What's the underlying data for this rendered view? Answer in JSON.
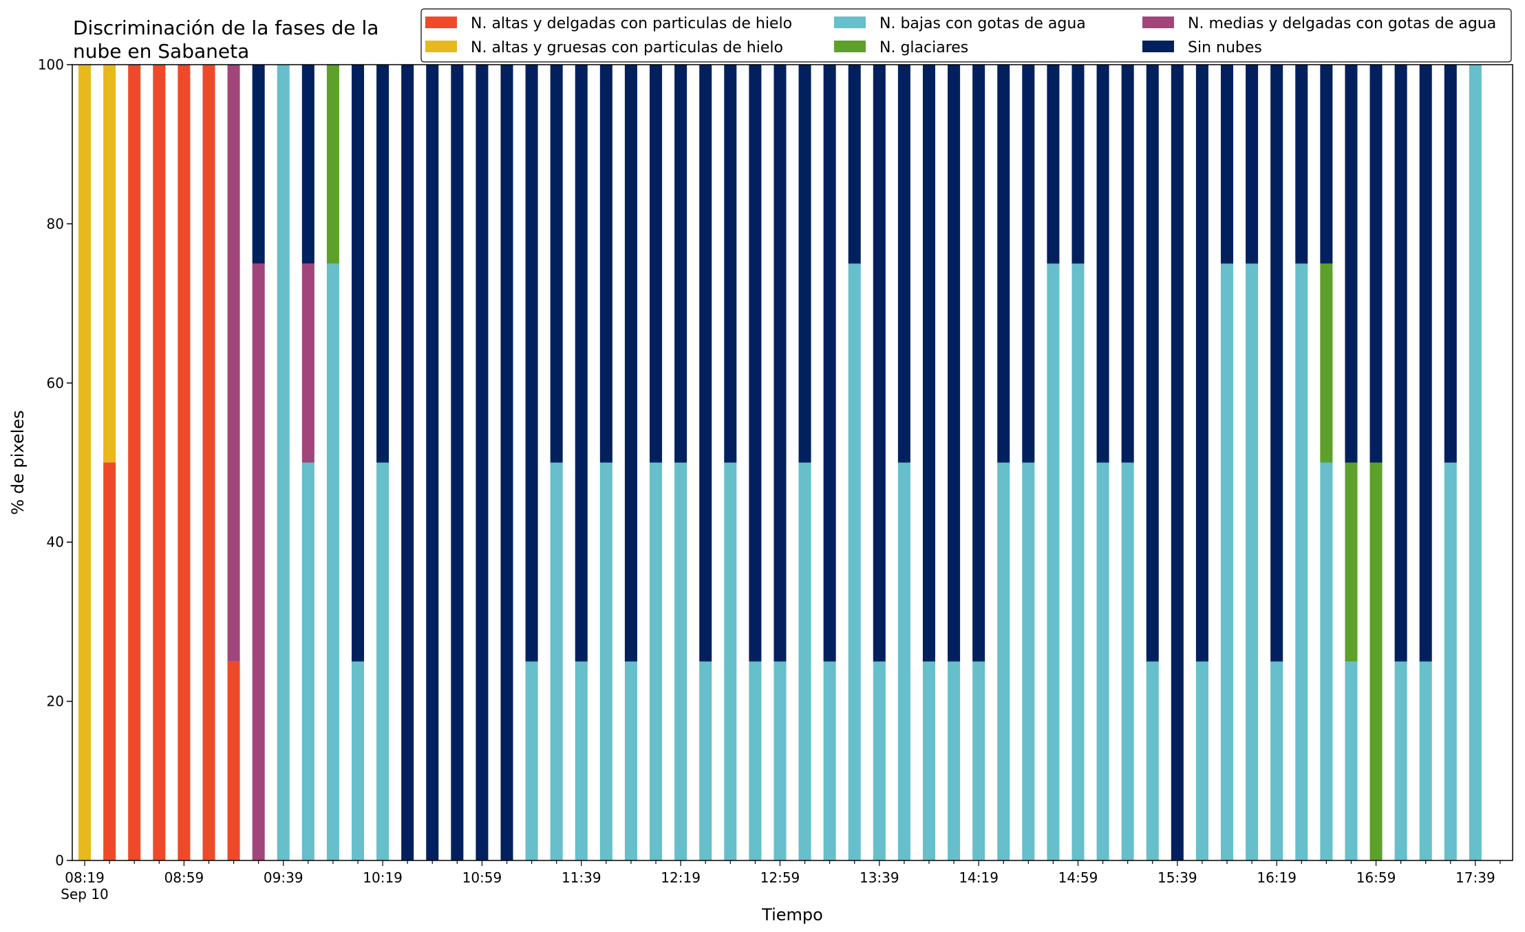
{
  "chart_data": {
    "type": "bar",
    "stacked": true,
    "title": "Discriminación de la fases de la\nnube en Sabaneta",
    "xlabel": "Tiempo",
    "ylabel": "% de pixeles",
    "ylim": [
      0,
      100
    ],
    "yticks": [
      0,
      20,
      40,
      60,
      80,
      100
    ],
    "grid": false,
    "legend_position": "top-right",
    "legend_columns": 3,
    "categories": [
      "08:19",
      "08:29",
      "08:39",
      "08:49",
      "08:59",
      "09:09",
      "09:19",
      "09:29",
      "09:39",
      "09:49",
      "09:59",
      "10:09",
      "10:19",
      "10:29",
      "10:39",
      "10:49",
      "10:59",
      "11:09",
      "11:19",
      "11:29",
      "11:39",
      "11:49",
      "11:59",
      "12:09",
      "12:19",
      "12:29",
      "12:39",
      "12:49",
      "12:59",
      "13:09",
      "13:19",
      "13:29",
      "13:39",
      "13:49",
      "13:59",
      "14:09",
      "14:19",
      "14:29",
      "14:39",
      "14:49",
      "14:59",
      "15:09",
      "15:19",
      "15:29",
      "15:39",
      "15:49",
      "15:59",
      "16:09",
      "16:19",
      "16:29",
      "16:39",
      "16:49",
      "16:59",
      "17:09",
      "17:19",
      "17:29",
      "17:39",
      "17:49"
    ],
    "xtick_labels": [
      {
        "index": 0,
        "label": "08:19",
        "sublabel": "Sep 10"
      },
      {
        "index": 4,
        "label": "08:59"
      },
      {
        "index": 8,
        "label": "09:39"
      },
      {
        "index": 12,
        "label": "10:19"
      },
      {
        "index": 16,
        "label": "10:59"
      },
      {
        "index": 20,
        "label": "11:39"
      },
      {
        "index": 24,
        "label": "12:19"
      },
      {
        "index": 28,
        "label": "12:59"
      },
      {
        "index": 32,
        "label": "13:39"
      },
      {
        "index": 36,
        "label": "14:19"
      },
      {
        "index": 40,
        "label": "14:59"
      },
      {
        "index": 44,
        "label": "15:39"
      },
      {
        "index": 48,
        "label": "16:19"
      },
      {
        "index": 52,
        "label": "16:59"
      },
      {
        "index": 56,
        "label": "17:39"
      }
    ],
    "series": [
      {
        "name": "N. altas y delgadas con particulas de hielo",
        "color": "#ee4a2a",
        "values": [
          0,
          50,
          100,
          100,
          100,
          100,
          25,
          0,
          0,
          0,
          0,
          0,
          0,
          0,
          0,
          0,
          0,
          0,
          0,
          0,
          0,
          0,
          0,
          0,
          0,
          0,
          0,
          0,
          0,
          0,
          0,
          0,
          0,
          0,
          0,
          0,
          0,
          0,
          0,
          0,
          0,
          0,
          0,
          0,
          0,
          0,
          0,
          0,
          0,
          0,
          0,
          0,
          0,
          0,
          0,
          0,
          0,
          0
        ]
      },
      {
        "name": "N. altas y gruesas con particulas de hielo",
        "color": "#e8b91c",
        "values": [
          100,
          50,
          0,
          0,
          0,
          0,
          0,
          0,
          0,
          0,
          0,
          0,
          0,
          0,
          0,
          0,
          0,
          0,
          0,
          0,
          0,
          0,
          0,
          0,
          0,
          0,
          0,
          0,
          0,
          0,
          0,
          0,
          0,
          0,
          0,
          0,
          0,
          0,
          0,
          0,
          0,
          0,
          0,
          0,
          0,
          0,
          0,
          0,
          0,
          0,
          0,
          0,
          0,
          0,
          0,
          0,
          0,
          0
        ]
      },
      {
        "name": "N. bajas con gotas de agua",
        "color": "#66bfca",
        "values": [
          0,
          0,
          0,
          0,
          0,
          0,
          0,
          0,
          100,
          50,
          75,
          25,
          50,
          0,
          0,
          0,
          0,
          0,
          25,
          50,
          25,
          50,
          25,
          50,
          50,
          25,
          50,
          25,
          25,
          50,
          25,
          75,
          25,
          50,
          25,
          25,
          25,
          50,
          50,
          75,
          75,
          50,
          50,
          25,
          0,
          25,
          75,
          75,
          25,
          75,
          50,
          25,
          0,
          25,
          25,
          50,
          100,
          0
        ]
      },
      {
        "name": "N. glaciares",
        "color": "#5da02a",
        "values": [
          0,
          0,
          0,
          0,
          0,
          0,
          0,
          0,
          0,
          0,
          25,
          0,
          0,
          0,
          0,
          0,
          0,
          0,
          0,
          0,
          0,
          0,
          0,
          0,
          0,
          0,
          0,
          0,
          0,
          0,
          0,
          0,
          0,
          0,
          0,
          0,
          0,
          0,
          0,
          0,
          0,
          0,
          0,
          0,
          0,
          0,
          0,
          0,
          0,
          0,
          25,
          25,
          50,
          0,
          0,
          0,
          0,
          0
        ]
      },
      {
        "name": "N. medias y delgadas con gotas de agua",
        "color": "#a2457a",
        "values": [
          0,
          0,
          0,
          0,
          0,
          0,
          75,
          75,
          0,
          25,
          0,
          0,
          0,
          0,
          0,
          0,
          0,
          0,
          0,
          0,
          0,
          0,
          0,
          0,
          0,
          0,
          0,
          0,
          0,
          0,
          0,
          0,
          0,
          0,
          0,
          0,
          0,
          0,
          0,
          0,
          0,
          0,
          0,
          0,
          0,
          0,
          0,
          0,
          0,
          0,
          0,
          0,
          0,
          0,
          0,
          0,
          0,
          0
        ]
      },
      {
        "name": "Sin nubes",
        "color": "#03205e",
        "values": [
          0,
          0,
          0,
          0,
          0,
          0,
          0,
          25,
          0,
          25,
          0,
          75,
          50,
          100,
          100,
          100,
          100,
          100,
          75,
          50,
          75,
          50,
          75,
          50,
          50,
          75,
          50,
          75,
          75,
          50,
          75,
          25,
          75,
          50,
          75,
          75,
          75,
          50,
          50,
          25,
          25,
          50,
          50,
          75,
          100,
          75,
          25,
          25,
          75,
          25,
          25,
          50,
          50,
          75,
          75,
          50,
          0,
          0
        ]
      }
    ]
  }
}
